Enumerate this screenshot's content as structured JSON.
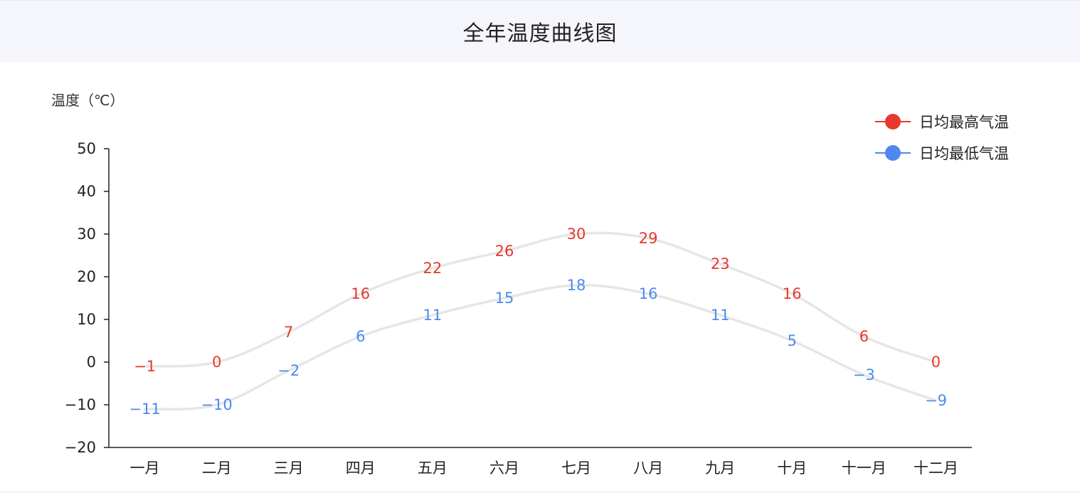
{
  "header": {
    "title": "全年温度曲线图"
  },
  "chart_data": {
    "type": "line",
    "title": "全年温度曲线图",
    "ylabel": "温度（℃）",
    "xlabel": "",
    "categories": [
      "一月",
      "二月",
      "三月",
      "四月",
      "五月",
      "六月",
      "七月",
      "八月",
      "九月",
      "十月",
      "十一月",
      "十二月"
    ],
    "ylim": [
      -20,
      50
    ],
    "yticks": [
      -20,
      -10,
      0,
      10,
      20,
      30,
      40,
      50
    ],
    "legend_position": "top-right",
    "line_color": "#e6e6e6",
    "series": [
      {
        "name": "日均最高气温",
        "color": "#e8372c",
        "values": [
          -1,
          0,
          7,
          16,
          22,
          26,
          30,
          29,
          23,
          16,
          6,
          0
        ]
      },
      {
        "name": "日均最低气温",
        "color": "#4e88f0",
        "values": [
          -11,
          -10,
          -2,
          6,
          11,
          15,
          18,
          16,
          11,
          5,
          -3,
          -9
        ]
      }
    ]
  }
}
